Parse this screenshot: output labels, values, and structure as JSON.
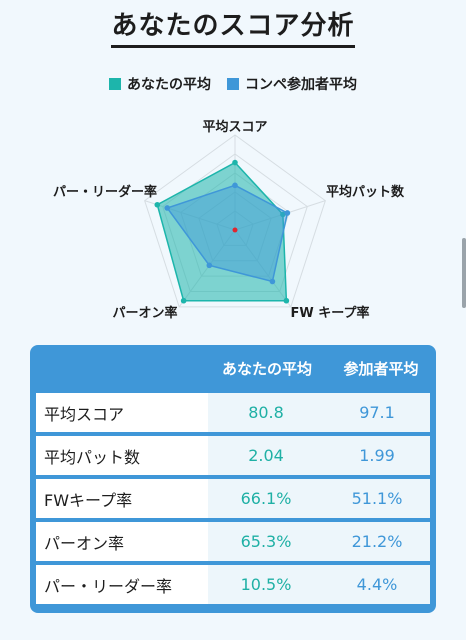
{
  "title": "あなたのスコア分析",
  "legend": {
    "you": {
      "label": "あなたの平均",
      "color": "#1db5ab"
    },
    "avg": {
      "label": "コンペ参加者平均",
      "color": "#3f97d8"
    }
  },
  "radar": {
    "axes": [
      "平均スコア",
      "平均パット数",
      "FW キープ率",
      "パーオン率",
      "パー・リーダー率"
    ],
    "you": [
      0.71,
      0.53,
      0.92,
      0.92,
      0.86
    ],
    "avg": [
      0.47,
      0.58,
      0.67,
      0.46,
      0.75
    ],
    "center_dot_color": "#e0262f"
  },
  "table": {
    "headers": [
      "",
      "あなたの平均",
      "参加者平均"
    ],
    "rows": [
      {
        "label": "平均スコア",
        "you": "80.8",
        "avg": "97.1"
      },
      {
        "label": "平均パット数",
        "you": "2.04",
        "avg": "1.99"
      },
      {
        "label": "FWキープ率",
        "you": "66.1%",
        "avg": "51.1%"
      },
      {
        "label": "パーオン率",
        "you": "65.3%",
        "avg": "21.2%"
      },
      {
        "label": "パー・リーダー率",
        "you": "10.5%",
        "avg": "4.4%"
      }
    ]
  }
}
